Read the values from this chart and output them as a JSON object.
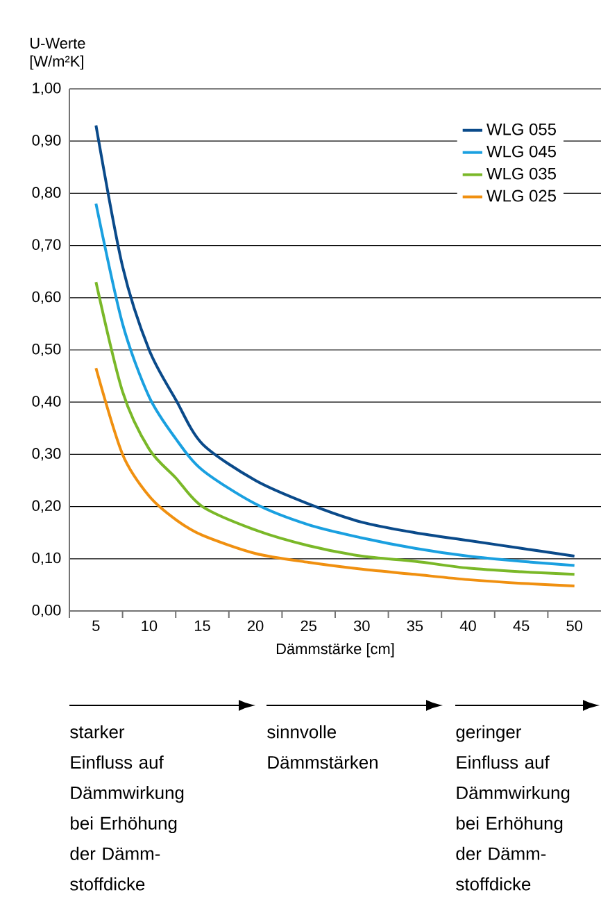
{
  "chart_data": {
    "type": "line",
    "ylabel": "U-Werte [W/m²K]",
    "xlabel": "Dämmstärke [cm]",
    "x": [
      5,
      7.5,
      10,
      12.5,
      15,
      20,
      25,
      30,
      35,
      40,
      45,
      50
    ],
    "series": [
      {
        "name": "WLG 055",
        "color": "#0a4a8a",
        "values": [
          0.93,
          0.66,
          0.5,
          0.405,
          0.32,
          0.25,
          0.205,
          0.17,
          0.15,
          0.135,
          0.12,
          0.105
        ]
      },
      {
        "name": "WLG 045",
        "color": "#1aa0e0",
        "values": [
          0.78,
          0.55,
          0.41,
          0.33,
          0.27,
          0.205,
          0.165,
          0.14,
          0.12,
          0.105,
          0.095,
          0.087
        ]
      },
      {
        "name": "WLG 035",
        "color": "#7ab828",
        "values": [
          0.63,
          0.42,
          0.31,
          0.255,
          0.2,
          0.155,
          0.125,
          0.105,
          0.095,
          0.082,
          0.075,
          0.07
        ]
      },
      {
        "name": "WLG 025",
        "color": "#f09010",
        "values": [
          0.465,
          0.3,
          0.22,
          0.175,
          0.145,
          0.11,
          0.093,
          0.08,
          0.07,
          0.06,
          0.053,
          0.048
        ]
      }
    ],
    "xlim": [
      2.5,
      52.5
    ],
    "xticks": [
      {
        "value": 2.5,
        "label": null
      },
      5,
      {
        "value": 7.5,
        "label": null
      },
      10,
      {
        "value": 12.5,
        "label": null
      },
      15,
      {
        "value": 17.5,
        "label": null
      },
      20,
      {
        "value": 22.5,
        "label": null
      },
      25,
      {
        "value": 27.5,
        "label": null
      },
      30,
      {
        "value": 32.5,
        "label": null
      },
      35,
      {
        "value": 37.5,
        "label": null
      },
      40,
      {
        "value": 42.5,
        "label": null
      },
      45,
      {
        "value": 47.5,
        "label": null
      },
      50
    ],
    "ylim": [
      0,
      1
    ],
    "yticks": [
      {
        "value": 0,
        "label": "0,00"
      },
      {
        "value": 0.1,
        "label": "0,10"
      },
      {
        "value": 0.2,
        "label": "0,20"
      },
      {
        "value": 0.3,
        "label": "0,30"
      },
      {
        "value": 0.4,
        "label": "0,40"
      },
      {
        "value": 0.5,
        "label": "0,50"
      },
      {
        "value": 0.6,
        "label": "0,60"
      },
      {
        "value": 0.7,
        "label": "0,70"
      },
      {
        "value": 0.8,
        "label": "0,80"
      },
      {
        "value": 0.9,
        "label": "0,90"
      },
      {
        "value": 1,
        "label": "1,00"
      }
    ],
    "grid": "y",
    "legend": "top right",
    "marker": "none",
    "line_style": "solid",
    "annotations": [
      "starker Einfluss auf Dämmwirkung bei Erhöhung der Dämm-stoffdicke",
      "sinnvolle Dämmstärken",
      "geringer Einfluss auf Dämmwirkung bei Erhöhung der Dämm-stoffdicke"
    ]
  }
}
